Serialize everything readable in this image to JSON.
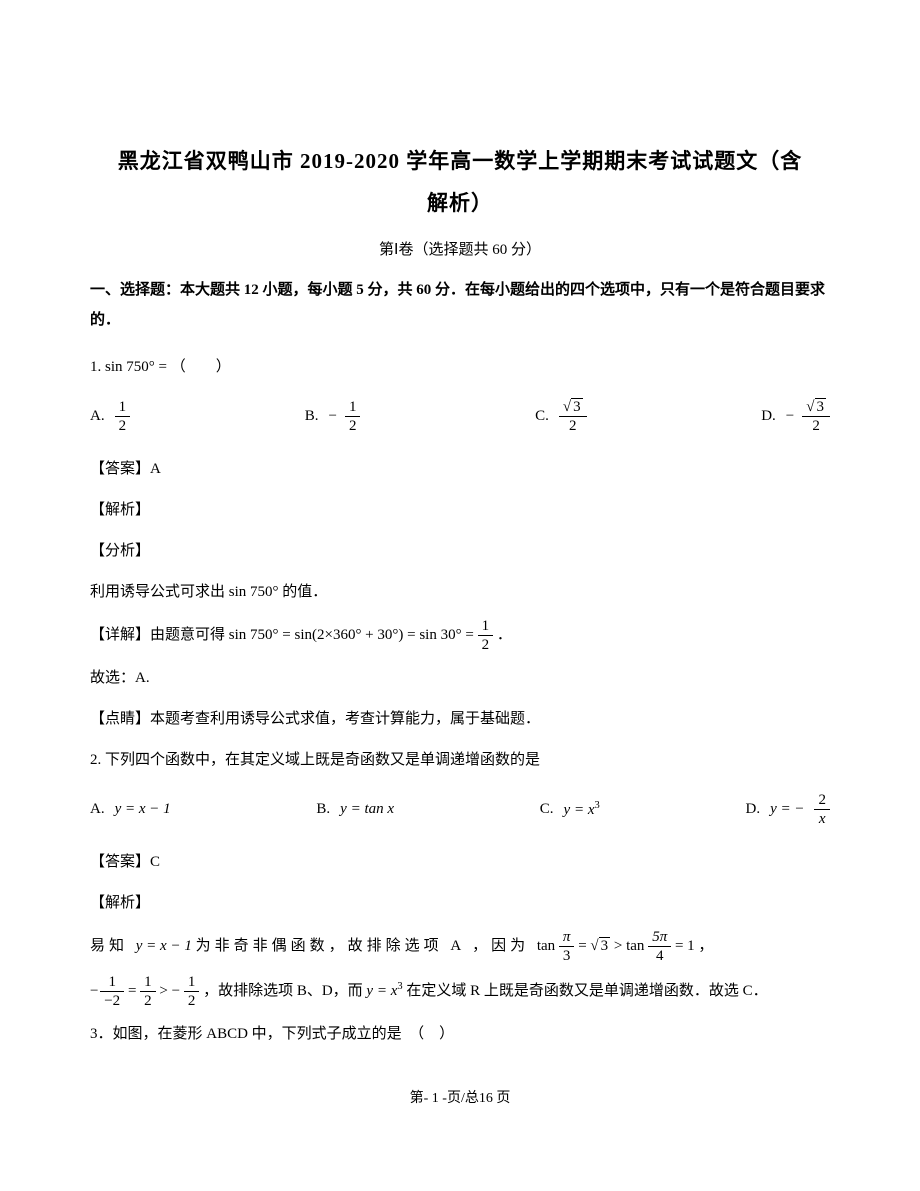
{
  "header": {
    "title_line1": "黑龙江省双鸭山市 2019-2020 学年高一数学上学期期末考试试题文（含",
    "title_line2": "解析）",
    "subtitle": "第Ⅰ卷（选择题共 60 分）",
    "section_intro": "一、选择题：本大题共 12 小题，每小题 5 分，共 60 分．在每小题给出的四个选项中，只有一个是符合题目要求的．"
  },
  "q1": {
    "stem_prefix": "1. ",
    "stem_math": "sin 750° = ",
    "stem_paren": "（　　）",
    "optA_label": "A.",
    "optA_num": "1",
    "optA_den": "2",
    "optB_label": "B.",
    "optB_num": "1",
    "optB_den": "2",
    "optC_label": "C.",
    "optC_num": "3",
    "optC_den": "2",
    "optD_label": "D.",
    "optD_num": "3",
    "optD_den": "2",
    "answer": "【答案】A",
    "jiexi": "【解析】",
    "fenxi": "【分析】",
    "fenxi_text": "利用诱导公式可求出 sin 750° 的值．",
    "detail_prefix": "【详解】由题意可得 ",
    "detail_math": "sin 750° = sin(2×360° + 30°) = sin 30° = ",
    "detail_num": "1",
    "detail_den": "2",
    "detail_suffix": "．",
    "guxuan": "故选：A.",
    "dianjing": "【点睛】本题考查利用诱导公式求值，考查计算能力，属于基础题．"
  },
  "q2": {
    "stem": "2. 下列四个函数中，在其定义域上既是奇函数又是单调递增函数的是",
    "optA_label": "A.",
    "optA_math": "y = x − 1",
    "optB_label": "B.",
    "optB_math": "y = tan x",
    "optC_label": "C.",
    "optC_math_base": "y = x",
    "optC_math_sup": "3",
    "optD_label": "D.",
    "optD_math_lead": "y = −",
    "optD_num": "2",
    "optD_den": "x",
    "answer": "【答案】C",
    "jiexi": "【解析】",
    "body_p1_a": "易知 ",
    "body_p1_math1": "y = x − 1",
    "body_p1_b": " 为非奇非偶函数，故排除选项 A ，因为 ",
    "body_p1_tan1": "tan",
    "body_p1_frac1_num": "π",
    "body_p1_frac1_den": "3",
    "body_p1_eq1": " = ",
    "body_p1_sqrt": "3",
    "body_p1_gt": " > ",
    "body_p1_tan2": "tan",
    "body_p1_frac2_num": "5π",
    "body_p1_frac2_den": "4",
    "body_p1_eq2": " = 1",
    "body_p1_comma": "，",
    "body_p2_frac_a_num": "1",
    "body_p2_frac_a_den": "−2",
    "body_p2_eq": " = ",
    "body_p2_frac_b_num": "1",
    "body_p2_frac_b_den": "2",
    "body_p2_gt": " > −",
    "body_p2_frac_c_num": "1",
    "body_p2_frac_c_den": "2",
    "body_p2_tail_a": "，故排除选项 B、D，而 ",
    "body_p2_math": "y = x",
    "body_p2_sup": "3",
    "body_p2_tail_b": " 在定义域 R 上既是奇函数又是单调递增函数．故选 C．"
  },
  "q3": {
    "stem": "3．如图，在菱形 ABCD 中，下列式子成立的是　（　）"
  },
  "footer": {
    "text": "第- 1 -页/总16 页"
  }
}
